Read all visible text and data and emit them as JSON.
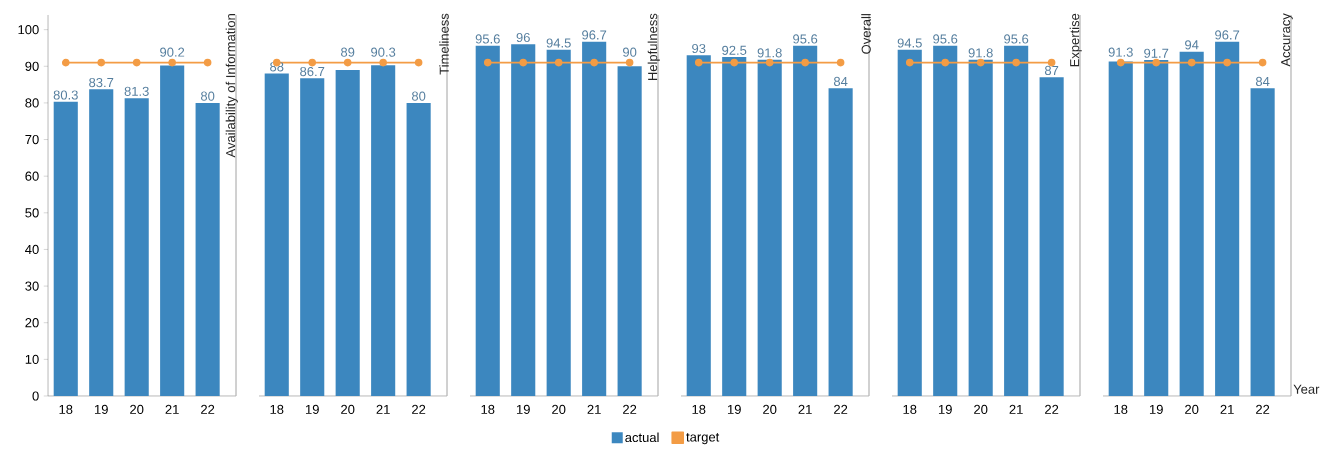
{
  "chart_data": [
    {
      "type": "bar",
      "title": "Availability of Information",
      "categories": [
        "18",
        "19",
        "20",
        "21",
        "22"
      ],
      "ylim": [
        0,
        104
      ],
      "yticks": [
        0,
        10,
        20,
        30,
        40,
        50,
        60,
        70,
        80,
        90,
        100
      ],
      "marker": "circle",
      "legend": "bottom",
      "series": [
        {
          "name": "actual",
          "color": "#3c87bf",
          "values": [
            80.3,
            83.7,
            81.3,
            90.2,
            80
          ],
          "value_labels": [
            "80.3",
            "83.7",
            "81.3",
            "90.2",
            "80"
          ]
        },
        {
          "name": "target",
          "type": "line",
          "color": "#f39c45",
          "values": [
            91,
            91,
            91,
            91,
            91
          ]
        }
      ]
    },
    {
      "type": "bar",
      "title": "Timeliness",
      "categories": [
        "18",
        "19",
        "20",
        "21",
        "22"
      ],
      "marker": "circle",
      "tick_labels": "x",
      "series": [
        {
          "color": "#3c87bf",
          "values": [
            88,
            86.7,
            89,
            90.3,
            80
          ],
          "value_labels": [
            "88",
            "86.7",
            "89",
            "90.3",
            "80"
          ]
        },
        {
          "type": "line",
          "color": "#f39c45",
          "values": [
            91,
            91,
            91,
            91,
            91
          ]
        }
      ]
    },
    {
      "type": "bar",
      "title": "Helpfulness",
      "categories": [
        "18",
        "19",
        "20",
        "21",
        "22"
      ],
      "marker": "circle",
      "tick_labels": "x",
      "series": [
        {
          "color": "#3c87bf",
          "values": [
            95.6,
            96,
            94.5,
            96.7,
            90
          ],
          "value_labels": [
            "95.6",
            "96",
            "94.5",
            "96.7",
            "90"
          ]
        },
        {
          "type": "line",
          "color": "#f39c45",
          "values": [
            91,
            91,
            91,
            91,
            91
          ]
        }
      ]
    },
    {
      "type": "bar",
      "title": "Overall",
      "categories": [
        "18",
        "19",
        "20",
        "21",
        "22"
      ],
      "marker": "circle",
      "tick_labels": "x",
      "series": [
        {
          "color": "#3c87bf",
          "values": [
            93,
            92.5,
            91.8,
            95.6,
            84
          ],
          "value_labels": [
            "93",
            "92.5",
            "91.8",
            "95.6",
            "84"
          ]
        },
        {
          "type": "line",
          "color": "#f39c45",
          "values": [
            91,
            91,
            91,
            91,
            91
          ]
        }
      ]
    },
    {
      "type": "bar",
      "title": "Expertise",
      "categories": [
        "18",
        "19",
        "20",
        "21",
        "22"
      ],
      "marker": "circle",
      "tick_labels": "x",
      "series": [
        {
          "color": "#3c87bf",
          "values": [
            94.5,
            95.6,
            91.8,
            95.6,
            87
          ],
          "value_labels": [
            "94.5",
            "95.6",
            "91.8",
            "95.6",
            "87"
          ]
        },
        {
          "type": "line",
          "color": "#f39c45",
          "values": [
            91,
            91,
            91,
            91,
            91
          ]
        }
      ]
    },
    {
      "type": "bar",
      "title": "Accuracy",
      "xlabel": "Year",
      "categories": [
        "18",
        "19",
        "20",
        "21",
        "22"
      ],
      "marker": "circle",
      "tick_labels": "x",
      "series": [
        {
          "color": "#3c87bf",
          "values": [
            91.3,
            91.7,
            94,
            96.7,
            84
          ],
          "value_labels": [
            "91.3",
            "91.7",
            "94",
            "96.7",
            "84"
          ]
        },
        {
          "type": "line",
          "color": "#f39c45",
          "values": [
            91,
            91,
            91,
            91,
            91
          ]
        }
      ]
    }
  ]
}
